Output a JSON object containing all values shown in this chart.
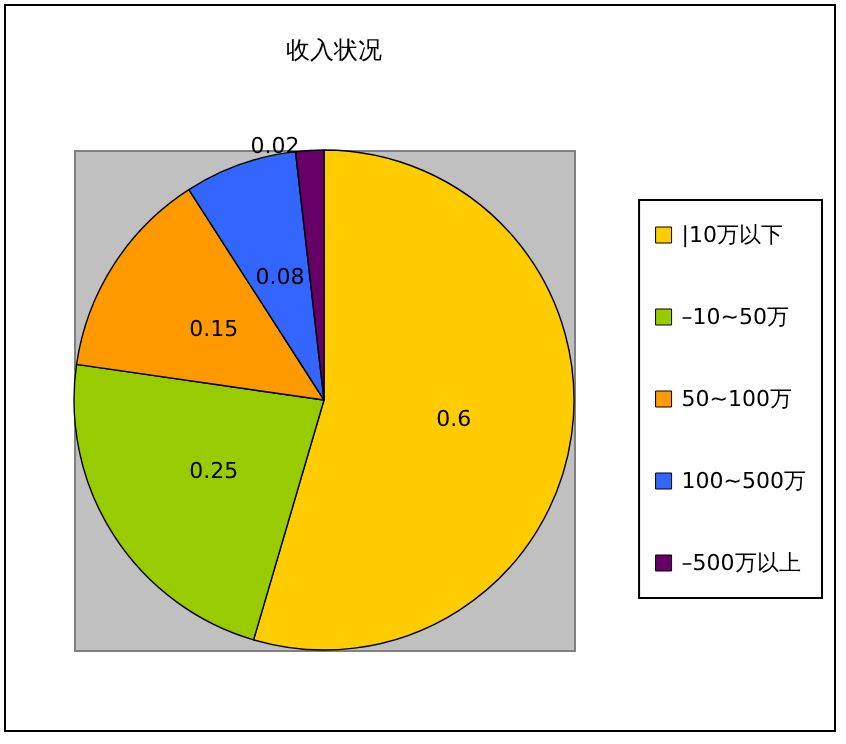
{
  "chart_data": {
    "type": "pie",
    "title": "收入状况",
    "categories": [
      "|10万以下",
      "–10~50万",
      "50~100万",
      "100~500万",
      "–500万以上"
    ],
    "values": [
      0.6,
      0.25,
      0.15,
      0.08,
      0.02
    ],
    "colors": [
      "#ffcc00",
      "#99cc00",
      "#ff9900",
      "#3366ff",
      "#660066"
    ],
    "data_labels": true,
    "legend": "right"
  }
}
